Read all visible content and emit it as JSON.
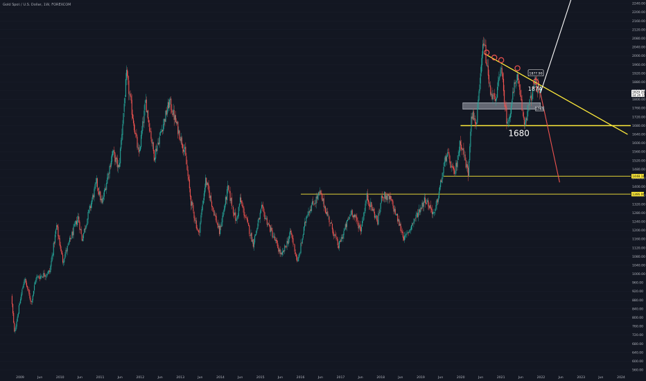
{
  "header": {
    "title": "Gold Spot / U.S. Dollar, 1W, FOREXCOM"
  },
  "colors": {
    "background": "#131722",
    "up": "#26a69a",
    "down": "#ef5350",
    "trendline": "#ffeb3b",
    "annotation": "#ffffff",
    "forecast_down": "#ef5350",
    "forecast_up": "#ffffff"
  },
  "chart_data": {
    "type": "candlestick",
    "title": "Gold Spot / U.S. Dollar, 1W, FOREXCOM",
    "xlabel": "",
    "ylabel": "",
    "y_axis_ticks": [
      "2240.00",
      "2200.00",
      "2160.00",
      "2120.00",
      "2080.00",
      "2040.00",
      "2000.00",
      "1960.00",
      "1920.00",
      "1880.00",
      "1840.00",
      "1800.00",
      "1760.00",
      "1720.00",
      "1680.00",
      "1640.00",
      "1600.00",
      "1560.00",
      "1520.00",
      "1480.00",
      "1440.00",
      "1400.00",
      "1360.00",
      "1320.00",
      "1280.00",
      "1240.00",
      "1200.00",
      "1160.00",
      "1120.00",
      "1080.00",
      "1040.00",
      "1000.00",
      "960.00",
      "920.00",
      "880.00",
      "840.00",
      "800.00",
      "760.00",
      "720.00",
      "680.00",
      "640.00",
      "600.00",
      "560.00"
    ],
    "ylim": [
      545,
      2270
    ],
    "x_axis_ticks": [
      "2009",
      "Jun",
      "2010",
      "Jun",
      "2011",
      "Jun",
      "2012",
      "Jun",
      "2013",
      "Jun",
      "2014",
      "Jun",
      "2015",
      "Jun",
      "2016",
      "Jun",
      "2017",
      "Jun",
      "2018",
      "Jun",
      "2019",
      "Jun",
      "2020",
      "Jun",
      "2021",
      "Jun",
      "2022",
      "Jun",
      "2023",
      "Jun",
      "2024"
    ],
    "price_path_keypoints": [
      {
        "date": "2008-10-20",
        "price": 900
      },
      {
        "date": "2008-11-17",
        "price": 730
      },
      {
        "date": "2009-02-16",
        "price": 980
      },
      {
        "date": "2009-04-20",
        "price": 870
      },
      {
        "date": "2009-06-01",
        "price": 980
      },
      {
        "date": "2009-10-05",
        "price": 1010
      },
      {
        "date": "2009-12-07",
        "price": 1220
      },
      {
        "date": "2010-02-01",
        "price": 1060
      },
      {
        "date": "2010-06-21",
        "price": 1260
      },
      {
        "date": "2010-07-26",
        "price": 1160
      },
      {
        "date": "2010-12-06",
        "price": 1420
      },
      {
        "date": "2011-01-24",
        "price": 1320
      },
      {
        "date": "2011-05-02",
        "price": 1560
      },
      {
        "date": "2011-06-27",
        "price": 1480
      },
      {
        "date": "2011-09-05",
        "price": 1910
      },
      {
        "date": "2011-12-26",
        "price": 1540
      },
      {
        "date": "2012-02-27",
        "price": 1790
      },
      {
        "date": "2012-05-14",
        "price": 1540
      },
      {
        "date": "2012-10-01",
        "price": 1790
      },
      {
        "date": "2013-02-18",
        "price": 1560
      },
      {
        "date": "2013-04-15",
        "price": 1330
      },
      {
        "date": "2013-06-24",
        "price": 1180
      },
      {
        "date": "2013-08-26",
        "price": 1430
      },
      {
        "date": "2013-12-30",
        "price": 1190
      },
      {
        "date": "2014-03-17",
        "price": 1390
      },
      {
        "date": "2014-06-02",
        "price": 1240
      },
      {
        "date": "2014-07-07",
        "price": 1340
      },
      {
        "date": "2014-11-03",
        "price": 1140
      },
      {
        "date": "2015-01-19",
        "price": 1300
      },
      {
        "date": "2015-07-20",
        "price": 1080
      },
      {
        "date": "2015-10-12",
        "price": 1190
      },
      {
        "date": "2015-12-14",
        "price": 1050
      },
      {
        "date": "2016-03-07",
        "price": 1280
      },
      {
        "date": "2016-07-04",
        "price": 1370
      },
      {
        "date": "2016-12-19",
        "price": 1125
      },
      {
        "date": "2017-04-17",
        "price": 1290
      },
      {
        "date": "2017-07-10",
        "price": 1205
      },
      {
        "date": "2017-09-04",
        "price": 1355
      },
      {
        "date": "2017-12-11",
        "price": 1240
      },
      {
        "date": "2018-01-22",
        "price": 1365
      },
      {
        "date": "2018-04-09",
        "price": 1340
      },
      {
        "date": "2018-08-13",
        "price": 1160
      },
      {
        "date": "2019-02-18",
        "price": 1345
      },
      {
        "date": "2019-05-13",
        "price": 1270
      },
      {
        "date": "2019-09-02",
        "price": 1555
      },
      {
        "date": "2019-11-11",
        "price": 1450
      },
      {
        "date": "2020-01-06",
        "price": 1610
      },
      {
        "date": "2020-03-16",
        "price": 1460
      },
      {
        "date": "2020-04-13",
        "price": 1740
      },
      {
        "date": "2020-06-01",
        "price": 1690
      },
      {
        "date": "2020-08-03",
        "price": 2075
      },
      {
        "date": "2020-09-28",
        "price": 1850
      },
      {
        "date": "2020-11-23",
        "price": 1780
      },
      {
        "date": "2021-01-04",
        "price": 1960
      },
      {
        "date": "2021-03-08",
        "price": 1680
      },
      {
        "date": "2021-06-01",
        "price": 1915
      },
      {
        "date": "2021-08-09",
        "price": 1690
      },
      {
        "date": "2021-09-20",
        "price": 1770
      },
      {
        "date": "2021-11-15",
        "price": 1877
      },
      {
        "date": "2021-12-27",
        "price": 1829
      }
    ],
    "horizontal_lines": [
      {
        "price": 1680,
        "color": "#ffeb3b",
        "label": "1680"
      },
      {
        "price": 1448.18,
        "color": "#ffeb3b",
        "label": "1448.18"
      },
      {
        "price": 1366.06,
        "color": "#ffeb3b",
        "label": "1366.06"
      }
    ],
    "trendlines": [
      {
        "from": {
          "date": "2020-08-03",
          "price": 2010
        },
        "to": {
          "date": "2024-03-01",
          "price": 1640
        },
        "color": "#ffeb3b"
      }
    ],
    "forecast_arrows": [
      {
        "from": {
          "date": "2021-12-27",
          "price": 1829
        },
        "to": {
          "date": "2022-06-20",
          "price": 1420
        },
        "color": "#ef5350"
      },
      {
        "from": {
          "date": "2021-12-27",
          "price": 1829
        },
        "to": {
          "date": "2022-10-10",
          "price": 2270
        },
        "color": "#ffffff"
      }
    ],
    "zone": {
      "from_date": "2020-01-20",
      "to_date": "2021-12-27",
      "price_top": 1785,
      "price_bottom": 1755,
      "label": "1765"
    },
    "annotations": [
      {
        "text": "1680",
        "date": "2021-06-14",
        "price": 1645
      },
      {
        "text": "1874",
        "date": "2021-11-08",
        "price": 1850
      },
      {
        "text": "1877.90",
        "date": "2021-11-15",
        "price": 1920
      },
      {
        "text": "1765",
        "date": "2021-12-20",
        "price": 1757
      }
    ],
    "tops_circled": [
      {
        "date": "2020-08-24",
        "price": 2015
      },
      {
        "date": "2020-11-02",
        "price": 1992
      },
      {
        "date": "2021-01-04",
        "price": 1980
      },
      {
        "date": "2021-06-01",
        "price": 1943
      },
      {
        "date": "2021-11-15",
        "price": 1882
      }
    ],
    "last_price": {
      "value": "1829.20",
      "sub": "1d 2h 15m"
    },
    "axis_tags": [
      {
        "price": 1448.18,
        "text": "1448.18"
      },
      {
        "price": 1366.06,
        "text": "1366.06"
      }
    ]
  }
}
